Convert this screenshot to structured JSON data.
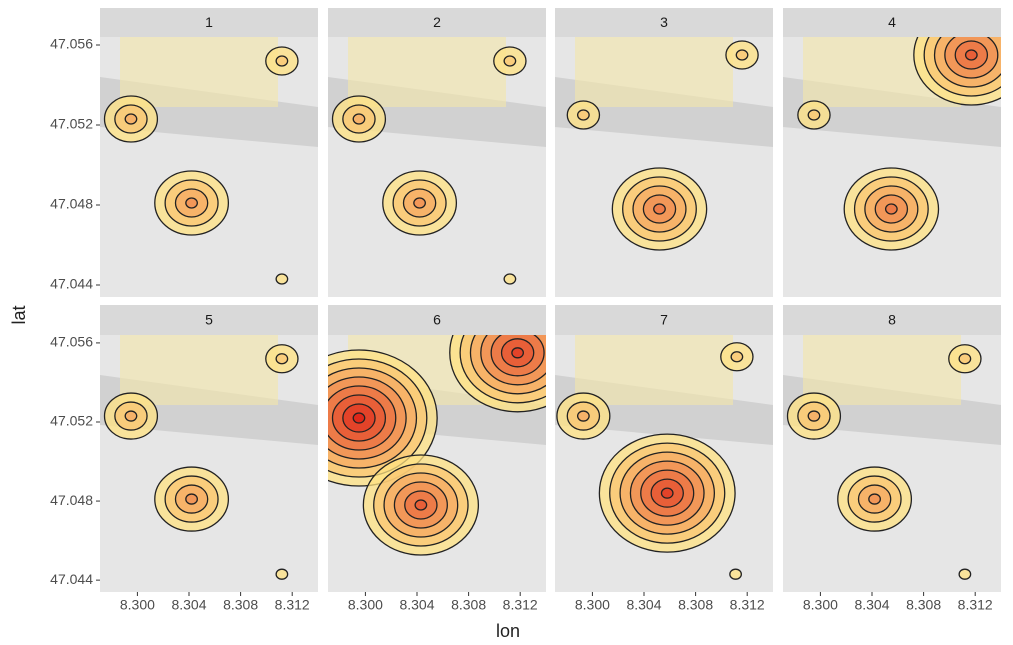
{
  "chart_data": {
    "type": "density2d",
    "x_label": "lon",
    "y_label": "lat",
    "xlim": [
      8.2971,
      8.314
    ],
    "ylim": [
      47.0434,
      47.0564
    ],
    "xticks": [
      {
        "value": 8.3,
        "label": "8.300"
      },
      8.304,
      8.308,
      8.312
    ],
    "yticks": [
      47.044,
      47.048,
      47.052,
      47.056
    ],
    "facets": [
      {
        "label": "1",
        "peaks": [
          {
            "lon": 8.2995,
            "lat": 47.0523,
            "levels": 3
          },
          {
            "lon": 8.3042,
            "lat": 47.0481,
            "levels": 4
          },
          {
            "lon": 8.3112,
            "lat": 47.0552,
            "levels": 2
          },
          {
            "lon": 8.3112,
            "lat": 47.0443,
            "levels": 1
          }
        ]
      },
      {
        "label": "2",
        "peaks": [
          {
            "lon": 8.2995,
            "lat": 47.0523,
            "levels": 3
          },
          {
            "lon": 8.3042,
            "lat": 47.0481,
            "levels": 4
          },
          {
            "lon": 8.3112,
            "lat": 47.0552,
            "levels": 2
          },
          {
            "lon": 8.3112,
            "lat": 47.0443,
            "levels": 1
          }
        ]
      },
      {
        "label": "3",
        "peaks": [
          {
            "lon": 8.2993,
            "lat": 47.0525,
            "levels": 2
          },
          {
            "lon": 8.3052,
            "lat": 47.0478,
            "levels": 5
          },
          {
            "lon": 8.3116,
            "lat": 47.0555,
            "levels": 2
          }
        ]
      },
      {
        "label": "4",
        "peaks": [
          {
            "lon": 8.2995,
            "lat": 47.0525,
            "levels": 2
          },
          {
            "lon": 8.3055,
            "lat": 47.0478,
            "levels": 5
          },
          {
            "lon": 8.3117,
            "lat": 47.0555,
            "levels": 6
          }
        ]
      },
      {
        "label": "5",
        "peaks": [
          {
            "lon": 8.2995,
            "lat": 47.0523,
            "levels": 3
          },
          {
            "lon": 8.3042,
            "lat": 47.0481,
            "levels": 4
          },
          {
            "lon": 8.3112,
            "lat": 47.0552,
            "levels": 2
          },
          {
            "lon": 8.3112,
            "lat": 47.0443,
            "levels": 1
          }
        ]
      },
      {
        "label": "6",
        "peaks": [
          {
            "lon": 8.2995,
            "lat": 47.0522,
            "levels": 8
          },
          {
            "lon": 8.3043,
            "lat": 47.0478,
            "levels": 6
          },
          {
            "lon": 8.3118,
            "lat": 47.0555,
            "levels": 7
          }
        ]
      },
      {
        "label": "7",
        "peaks": [
          {
            "lon": 8.2993,
            "lat": 47.0523,
            "levels": 3
          },
          {
            "lon": 8.3058,
            "lat": 47.0484,
            "levels": 7
          },
          {
            "lon": 8.3112,
            "lat": 47.0553,
            "levels": 2
          },
          {
            "lon": 8.3111,
            "lat": 47.0443,
            "levels": 1
          }
        ]
      },
      {
        "label": "8",
        "peaks": [
          {
            "lon": 8.2995,
            "lat": 47.0523,
            "levels": 3
          },
          {
            "lon": 8.3042,
            "lat": 47.0481,
            "levels": 4
          },
          {
            "lon": 8.3112,
            "lat": 47.0552,
            "levels": 2
          },
          {
            "lon": 8.3112,
            "lat": 47.0443,
            "levels": 1
          }
        ]
      }
    ]
  }
}
